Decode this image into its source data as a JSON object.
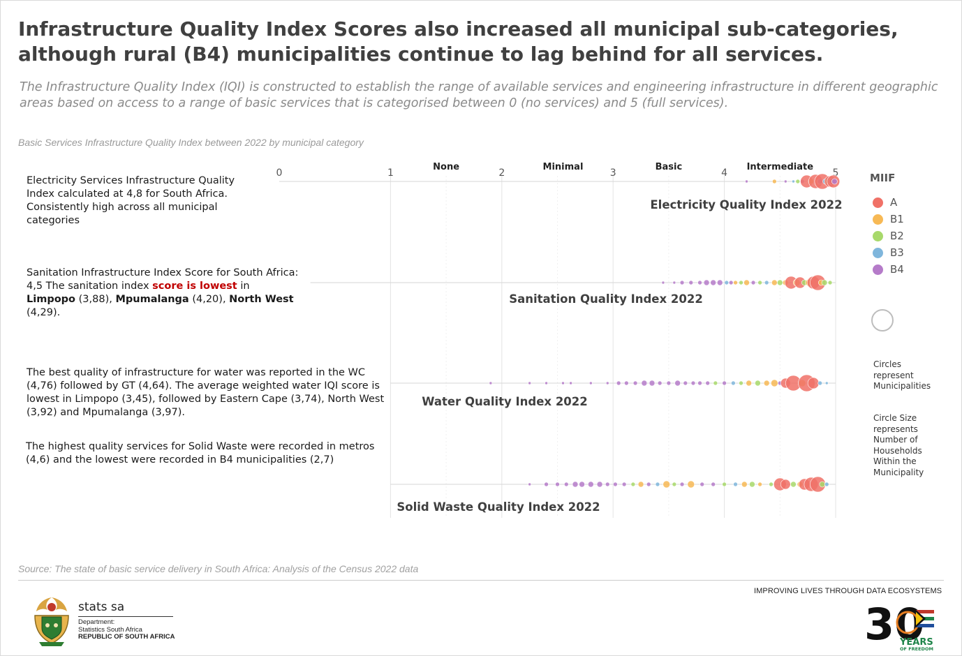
{
  "header": {
    "title_bold": "Infrastructure Quality Index",
    "title_rest": " Scores also increased all municipal sub-categories, although rural (B4) municipalities continue to lag behind for all services.",
    "intro": "The Infrastructure Quality Index (IQI) is constructed to establish the range of available services and engineering infrastructure in different geographic areas based on access to a range of basic services that is categorised between 0 (no services) and 5 (full services)."
  },
  "chart_subtitle": "Basic Services Infrastructure Quality Index between  2022 by municipal category",
  "notes": {
    "electricity": "Electricity Services Infrastructure Quality Index calculated at 4,8 for South Africa. Consistently high across all municipal categories",
    "sanitation": {
      "part1": "Sanitation Infrastructure Index Score for South Africa: 4,5 The sanitation index ",
      "highlight": "score is lowest",
      "part2": " in ",
      "p1": "Limpopo",
      "part3": " (3,88), ",
      "p2": "Mpumalanga",
      "part4": " (4,20), ",
      "p3": "North West",
      "part5": " (4,29)."
    },
    "water": "The best quality of infrastructure for water was reported in the WC (4,76) followed by GT (4,64). The average weighted water IQI score is lowest in Limpopo (3,45), followed by Eastern Cape (3,74), North West (3,92) and Mpumalanga (3,97).",
    "solid_waste": "The highest quality services for Solid Waste were recorded in metros (4,6) and the lowest were recorded in B4 municipalities (2,7)"
  },
  "legend": {
    "title": "MIIF",
    "items": [
      {
        "label": "A",
        "color": "#f07167"
      },
      {
        "label": "B1",
        "color": "#f7b955"
      },
      {
        "label": "B2",
        "color": "#a8d96b"
      },
      {
        "label": "B3",
        "color": "#7fb6dc"
      },
      {
        "label": "B4",
        "color": "#b57bc9"
      }
    ],
    "circles_note": "Circles\nrepresent\nMunicipalities",
    "size_note": "Circle Size\nrepresents\nNumber of\nHouseholds\nWithin the\nMunicipality"
  },
  "chart_data": {
    "type": "scatter",
    "xlim": [
      0,
      5
    ],
    "x_ticks": [
      "0",
      "1",
      "2",
      "3",
      "4",
      "5"
    ],
    "category_bands": [
      "None",
      "Minimal",
      "Basic",
      "Intermediate"
    ],
    "series": [
      {
        "name": "Electricity Quality Index 2022",
        "points": [
          [
            4.2,
            "B4",
            2
          ],
          [
            4.45,
            "B1",
            3
          ],
          [
            4.55,
            "B4",
            2
          ],
          [
            4.62,
            "B3",
            2
          ],
          [
            4.66,
            "B2",
            3
          ],
          [
            4.7,
            "B4",
            3
          ],
          [
            4.74,
            "A",
            9
          ],
          [
            4.78,
            "B1",
            4
          ],
          [
            4.82,
            "A",
            10
          ],
          [
            4.86,
            "B4",
            4
          ],
          [
            4.88,
            "A",
            11
          ],
          [
            4.91,
            "B3",
            4
          ],
          [
            4.93,
            "B2",
            4
          ],
          [
            4.95,
            "A",
            8
          ],
          [
            4.97,
            "B4",
            5
          ],
          [
            4.98,
            "A",
            9
          ],
          [
            4.99,
            "B4",
            4
          ]
        ]
      },
      {
        "name": "Sanitation Quality Index 2022",
        "points": [
          [
            3.45,
            "B4",
            2
          ],
          [
            3.55,
            "B4",
            2
          ],
          [
            3.62,
            "B4",
            3
          ],
          [
            3.7,
            "B4",
            3
          ],
          [
            3.78,
            "B4",
            3
          ],
          [
            3.84,
            "B4",
            4
          ],
          [
            3.9,
            "B4",
            4
          ],
          [
            3.96,
            "B4",
            4
          ],
          [
            4.02,
            "B3",
            3
          ],
          [
            4.06,
            "B4",
            3
          ],
          [
            4.1,
            "B1",
            3
          ],
          [
            4.15,
            "B2",
            3
          ],
          [
            4.2,
            "B1",
            4
          ],
          [
            4.26,
            "B4",
            3
          ],
          [
            4.32,
            "B2",
            3
          ],
          [
            4.38,
            "B3",
            3
          ],
          [
            4.45,
            "B1",
            4
          ],
          [
            4.5,
            "B2",
            4
          ],
          [
            4.55,
            "B1",
            4
          ],
          [
            4.6,
            "A",
            9
          ],
          [
            4.65,
            "B1",
            5
          ],
          [
            4.68,
            "A",
            8
          ],
          [
            4.72,
            "B2",
            4
          ],
          [
            4.76,
            "B1",
            5
          ],
          [
            4.8,
            "A",
            9
          ],
          [
            4.84,
            "A",
            11
          ],
          [
            4.87,
            "B1",
            4
          ],
          [
            4.9,
            "B2",
            4
          ],
          [
            4.95,
            "B2",
            3
          ]
        ]
      },
      {
        "name": "Water Quality Index 2022",
        "points": [
          [
            1.9,
            "B4",
            2
          ],
          [
            2.25,
            "B4",
            2
          ],
          [
            2.4,
            "B4",
            2
          ],
          [
            2.55,
            "B4",
            2
          ],
          [
            2.62,
            "B4",
            2
          ],
          [
            2.8,
            "B4",
            2
          ],
          [
            2.95,
            "B4",
            2
          ],
          [
            3.05,
            "B4",
            3
          ],
          [
            3.12,
            "B4",
            3
          ],
          [
            3.2,
            "B4",
            3
          ],
          [
            3.28,
            "B4",
            4
          ],
          [
            3.35,
            "B4",
            4
          ],
          [
            3.42,
            "B4",
            3
          ],
          [
            3.5,
            "B4",
            3
          ],
          [
            3.58,
            "B4",
            4
          ],
          [
            3.65,
            "B4",
            3
          ],
          [
            3.72,
            "B4",
            3
          ],
          [
            3.78,
            "B4",
            3
          ],
          [
            3.85,
            "B4",
            3
          ],
          [
            3.92,
            "B2",
            3
          ],
          [
            4.0,
            "B4",
            3
          ],
          [
            4.08,
            "B3",
            3
          ],
          [
            4.15,
            "B2",
            3
          ],
          [
            4.22,
            "B1",
            4
          ],
          [
            4.3,
            "B2",
            4
          ],
          [
            4.38,
            "B1",
            4
          ],
          [
            4.45,
            "B1",
            5
          ],
          [
            4.5,
            "B4",
            3
          ],
          [
            4.55,
            "A",
            7
          ],
          [
            4.62,
            "A",
            11
          ],
          [
            4.7,
            "B1",
            5
          ],
          [
            4.74,
            "A",
            12
          ],
          [
            4.8,
            "A",
            8
          ],
          [
            4.86,
            "B3",
            3
          ],
          [
            4.92,
            "B3",
            2
          ]
        ]
      },
      {
        "name": "Solid Waste Quality Index 2022",
        "points": [
          [
            2.25,
            "B4",
            2
          ],
          [
            2.4,
            "B4",
            3
          ],
          [
            2.5,
            "B4",
            3
          ],
          [
            2.58,
            "B4",
            3
          ],
          [
            2.66,
            "B4",
            4
          ],
          [
            2.72,
            "B4",
            4
          ],
          [
            2.8,
            "B4",
            4
          ],
          [
            2.88,
            "B4",
            4
          ],
          [
            2.95,
            "B4",
            3
          ],
          [
            3.02,
            "B4",
            3
          ],
          [
            3.1,
            "B4",
            3
          ],
          [
            3.18,
            "B2",
            3
          ],
          [
            3.25,
            "B1",
            4
          ],
          [
            3.32,
            "B4",
            3
          ],
          [
            3.4,
            "B3",
            3
          ],
          [
            3.48,
            "B1",
            5
          ],
          [
            3.55,
            "B2",
            3
          ],
          [
            3.62,
            "B4",
            3
          ],
          [
            3.7,
            "B1",
            5
          ],
          [
            3.8,
            "B4",
            3
          ],
          [
            3.9,
            "B4",
            3
          ],
          [
            4.0,
            "B2",
            3
          ],
          [
            4.1,
            "B3",
            3
          ],
          [
            4.18,
            "B1",
            4
          ],
          [
            4.25,
            "B2",
            4
          ],
          [
            4.32,
            "B1",
            3
          ],
          [
            4.42,
            "B2",
            3
          ],
          [
            4.5,
            "A",
            9
          ],
          [
            4.55,
            "A",
            7
          ],
          [
            4.62,
            "B2",
            4
          ],
          [
            4.68,
            "B1",
            4
          ],
          [
            4.72,
            "A",
            8
          ],
          [
            4.78,
            "A",
            10
          ],
          [
            4.84,
            "A",
            11
          ],
          [
            4.88,
            "B2",
            4
          ],
          [
            4.92,
            "B3",
            3
          ]
        ]
      }
    ]
  },
  "footer": {
    "source": "Source: The state of basic service delivery in South Africa: Analysis of the Census 2022 data",
    "brand": "stats sa",
    "dept_line1": "Department:",
    "dept_line2": "Statistics South Africa",
    "dept_line3": "REPUBLIC OF SOUTH AFRICA",
    "tagline": "IMPROVING LIVES THROUGH DATA ECOSYSTEMS",
    "anniv_number": "30",
    "anniv_years": "YEARS",
    "anniv_freedom": "OF FREEDOM"
  }
}
